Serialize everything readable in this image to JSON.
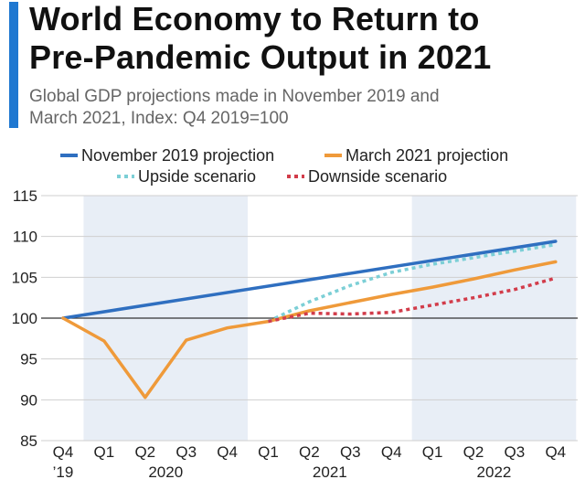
{
  "header": {
    "title_line1": "World Economy to Return to",
    "title_line2": "Pre-Pandemic Output in 2021",
    "subtitle_line1": "Global GDP projections made in November 2019 and",
    "subtitle_line2": "March 2021, Index: Q4 2019=100",
    "accent_color": "#1f78d1"
  },
  "chart_data": {
    "type": "line",
    "title": "World Economy to Return to Pre-Pandemic Output in 2021",
    "subtitle": "Global GDP projections made in November 2019 and March 2021, Index: Q4 2019=100",
    "xlabel": "",
    "ylabel": "",
    "ylim": [
      85,
      115
    ],
    "yticks": [
      85,
      90,
      95,
      100,
      105,
      110,
      115
    ],
    "categories": [
      "Q4 '19",
      "Q1 2020",
      "Q2 2020",
      "Q3 2020",
      "Q4 2020",
      "Q1 2021",
      "Q2 2021",
      "Q3 2021",
      "Q4 2021",
      "Q1 2022",
      "Q2 2022",
      "Q3 2022",
      "Q4 2022"
    ],
    "x_tick_labels": [
      "Q4",
      "Q1",
      "Q2",
      "Q3",
      "Q4",
      "Q1",
      "Q2",
      "Q3",
      "Q4",
      "Q1",
      "Q2",
      "Q3",
      "Q4"
    ],
    "x_tick_sublabels": [
      "’19",
      "",
      "",
      "",
      "",
      "",
      "",
      "",
      "",
      "",
      "",
      "",
      ""
    ],
    "year_labels": [
      {
        "label": "2020",
        "quarters": [
          1,
          4
        ]
      },
      {
        "label": "2021",
        "quarters": [
          5,
          8
        ]
      },
      {
        "label": "2022",
        "quarters": [
          9,
          12
        ]
      }
    ],
    "shaded_periods": [
      [
        1,
        4
      ],
      [
        9,
        12
      ]
    ],
    "reference_line": 100,
    "grid": true,
    "legend_position": "top",
    "series": [
      {
        "name": "November 2019 projection",
        "color": "#2f6fc0",
        "style": "solid",
        "x": [
          0,
          12
        ],
        "values": [
          100,
          109.4
        ]
      },
      {
        "name": "March 2021 projection",
        "color": "#ef9a3a",
        "style": "solid",
        "x": [
          0,
          1,
          2,
          3,
          4,
          5,
          6,
          7,
          8,
          9,
          10,
          11,
          12
        ],
        "values": [
          100,
          97.2,
          90.3,
          97.3,
          98.8,
          99.6,
          100.9,
          101.9,
          102.9,
          103.8,
          104.8,
          105.9,
          106.9
        ]
      },
      {
        "name": "Upside scenario",
        "color": "#7ccfd6",
        "style": "dotted",
        "x": [
          5,
          6,
          7,
          8,
          9,
          10,
          11,
          12
        ],
        "values": [
          99.6,
          102.0,
          104.0,
          105.6,
          106.6,
          107.4,
          108.2,
          109.0
        ]
      },
      {
        "name": "Downside scenario",
        "color": "#d23c4a",
        "style": "dotted",
        "x": [
          5,
          6,
          7,
          8,
          9,
          10,
          11,
          12
        ],
        "values": [
          99.6,
          100.6,
          100.5,
          100.7,
          101.6,
          102.5,
          103.5,
          104.9
        ]
      }
    ]
  }
}
